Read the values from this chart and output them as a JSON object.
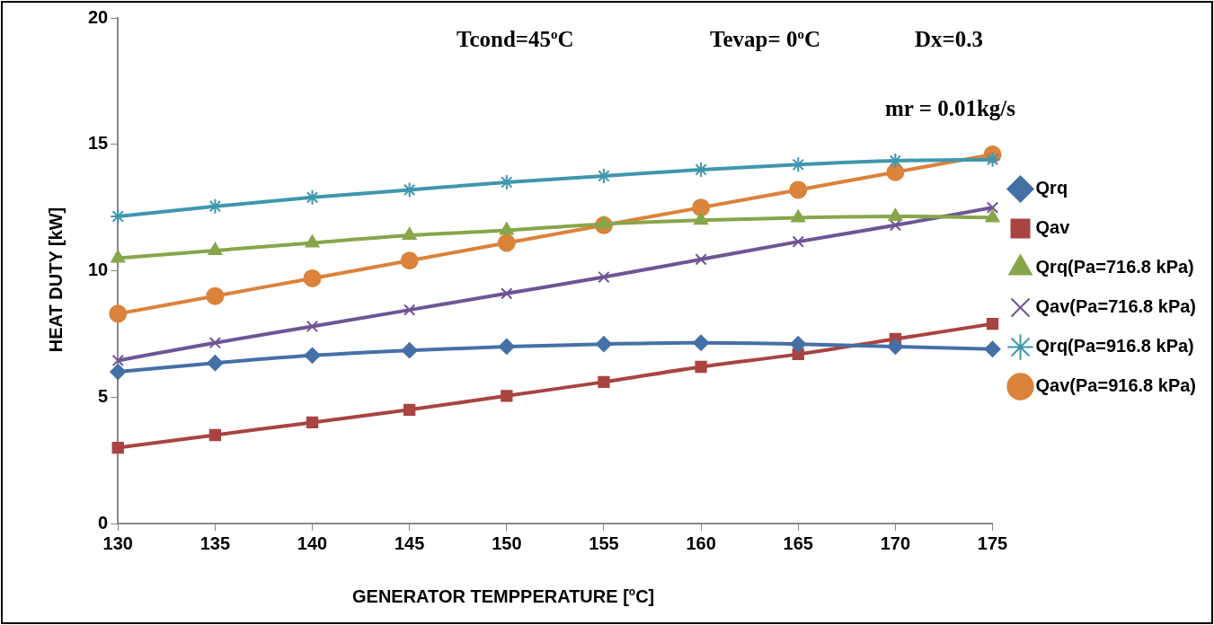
{
  "chart_data": {
    "type": "line",
    "xlabel": "GENERATOR TEMPPERATURE [$^{o}$C]",
    "ylabel": "HEAT DUTY [kW]",
    "annotations": [
      "Tcond=45$^{o}$C",
      "Tevap= 0$^{o}$C",
      "Dx=0.3",
      "mr = 0.01kg/s"
    ],
    "categories": [
      "130",
      "135",
      "140",
      "145",
      "150",
      "155",
      "160",
      "165",
      "170",
      "175"
    ],
    "ylim": [
      0,
      20
    ],
    "yticks": [
      0,
      5,
      10,
      15,
      20
    ],
    "grid": false,
    "legend": "right",
    "line_style": "solid",
    "series": [
      {
        "name": "Qrq",
        "color": "#4470a6",
        "marker": "diamond",
        "values": [
          6.0,
          6.35,
          6.65,
          6.85,
          7.0,
          7.1,
          7.15,
          7.1,
          7.0,
          6.9
        ]
      },
      {
        "name": "Qav",
        "color": "#a84442",
        "marker": "square",
        "values": [
          3.0,
          3.5,
          4.0,
          4.5,
          5.05,
          5.6,
          6.2,
          6.7,
          7.3,
          7.9
        ]
      },
      {
        "name": "Qrq(Pa=716.8 kPa)",
        "color": "#87a64a",
        "marker": "triangle",
        "values": [
          10.5,
          10.8,
          11.1,
          11.4,
          11.6,
          11.85,
          12.0,
          12.1,
          12.15,
          12.1
        ]
      },
      {
        "name": "Qav(Pa=716.8 kPa)",
        "color": "#6e5595",
        "marker": "cross",
        "values": [
          6.45,
          7.15,
          7.8,
          8.45,
          9.1,
          9.75,
          10.45,
          11.15,
          11.8,
          12.5
        ]
      },
      {
        "name": "Qrq(Pa=916.8 kPa)",
        "color": "#3f97ae",
        "marker": "cross",
        "values": [
          12.15,
          12.55,
          12.9,
          13.2,
          13.5,
          13.75,
          14.0,
          14.2,
          14.35,
          14.4
        ]
      },
      {
        "name": "Qav(Pa=916.8 kPa)",
        "color": "#db823b",
        "marker": "circle",
        "values": [
          8.3,
          9.0,
          9.7,
          10.4,
          11.1,
          11.8,
          12.5,
          13.2,
          13.9,
          14.6
        ]
      }
    ]
  }
}
